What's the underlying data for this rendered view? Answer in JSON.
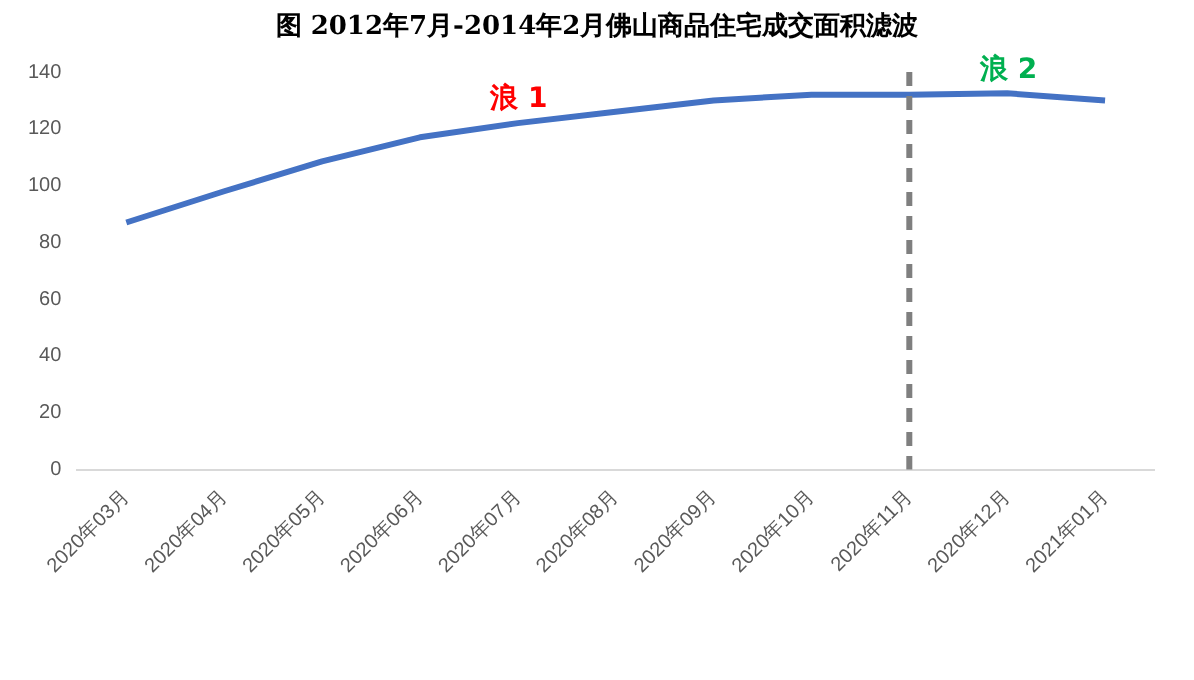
{
  "chart_data": {
    "type": "line",
    "title": "图 2012年7月-2014年2月佛山商品住宅成交面积滤波",
    "categories": [
      "2020年03月",
      "2020年04月",
      "2020年05月",
      "2020年06月",
      "2020年07月",
      "2020年08月",
      "2020年09月",
      "2020年10月",
      "2020年11月",
      "2020年12月",
      "2021年01月"
    ],
    "series": [
      {
        "color": "#4472c4",
        "values": [
          87,
          98,
          108.5,
          117,
          122,
          126,
          130,
          132,
          132,
          132.5,
          130
        ]
      }
    ],
    "ylim": [
      0,
      140
    ],
    "yticks": [
      0,
      20,
      40,
      60,
      80,
      100,
      120,
      140
    ],
    "grid": false,
    "legend": false,
    "marker": "none",
    "line_style": "solid",
    "ref_lines": [
      {
        "axis": "x",
        "value": "2020年11月",
        "color": "#7f7f7f",
        "line_style": "dashed"
      }
    ],
    "annotations": [
      "浪 1",
      "浪 2"
    ]
  }
}
